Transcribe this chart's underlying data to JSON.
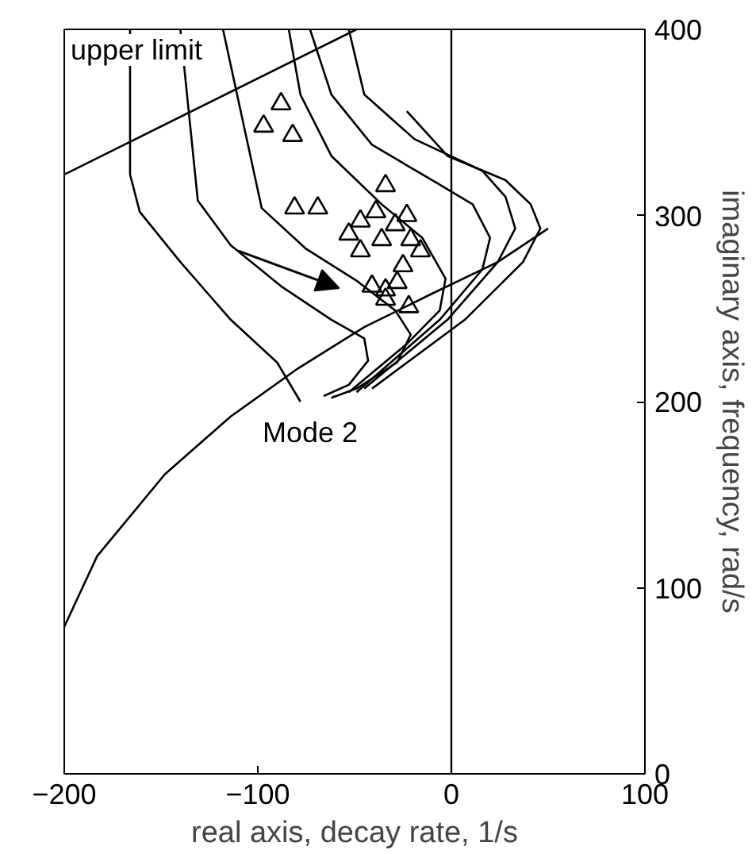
{
  "chart_data": {
    "type": "line",
    "xlabel": "real axis, decay rate, 1/s",
    "ylabel": "imaginary axis, frequency, rad/s",
    "xlim": [
      -200,
      100
    ],
    "ylim": [
      0,
      400
    ],
    "xticks": [
      -200,
      -100,
      0,
      100
    ],
    "yticks": [
      0,
      100,
      200,
      300,
      400
    ],
    "grid": false,
    "series": [
      {
        "color": "#000000",
        "x": [
          -166,
          -166,
          -161,
          -140,
          -114,
          -90,
          -78
        ],
        "values": [
          400,
          322,
          302,
          275,
          244,
          221,
          200
        ]
      },
      {
        "color": "#000000",
        "x": [
          -140,
          -131,
          -114,
          -88,
          -62,
          -45,
          -43,
          -53,
          -66
        ],
        "values": [
          400,
          308,
          284,
          262,
          244,
          234,
          222,
          209,
          203
        ]
      },
      {
        "color": "#000000",
        "x": [
          -118,
          -98,
          -75,
          -49,
          -29,
          -21,
          -28,
          -49,
          -62
        ],
        "values": [
          400,
          304,
          282,
          265,
          249,
          236,
          221,
          207,
          202
        ]
      },
      {
        "color": "#000000",
        "x": [
          -84,
          -78,
          -62,
          -36,
          -15,
          -3,
          -6,
          -23,
          -53
        ],
        "values": [
          400,
          365,
          332,
          306,
          288,
          266,
          249,
          231,
          205
        ]
      },
      {
        "color": "#000000",
        "x": [
          -73,
          -62,
          -41,
          -10,
          11,
          20,
          16,
          -6,
          -49
        ],
        "values": [
          400,
          365,
          338,
          319,
          306,
          288,
          271,
          244,
          205
        ]
      },
      {
        "color": "#000000",
        "x": [
          -53,
          -45,
          -19,
          16,
          28,
          33,
          24,
          -2,
          -45
        ],
        "values": [
          400,
          365,
          341,
          324,
          310,
          293,
          275,
          244,
          207
        ]
      },
      {
        "color": "#000000",
        "x": [
          -23,
          -2,
          28,
          41,
          46,
          37,
          7,
          -41
        ],
        "values": [
          356,
          332,
          319,
          306,
          293,
          275,
          244,
          207
        ]
      },
      {
        "color": "#000000",
        "x": [
          -200,
          -49
        ],
        "values": [
          322,
          400
        ]
      },
      {
        "color": "#000000",
        "x": [
          -200,
          -183,
          -148,
          -114,
          -79,
          -45,
          -10,
          24,
          50
        ],
        "values": [
          79,
          117,
          161,
          192,
          218,
          240,
          258,
          275,
          293
        ]
      },
      {
        "type": "scatter",
        "marker": "triangle",
        "color": "#000000",
        "x": [
          -88,
          -97,
          -82,
          -81,
          -69,
          -34,
          -39,
          -47,
          -23,
          -29,
          -53,
          -36,
          -21,
          -47,
          -16,
          -25,
          -41,
          -34,
          -28,
          -34,
          -22
        ],
        "values": [
          360,
          348,
          343,
          304,
          304,
          316,
          302,
          297,
          300,
          295,
          290,
          287,
          287,
          281,
          281,
          273,
          262,
          260,
          264,
          255,
          251
        ]
      }
    ],
    "ref_lines": [
      {
        "axis": "x",
        "value": 0,
        "color": "#000000"
      }
    ],
    "annotations": [
      "upper limit",
      "Mode 2"
    ]
  }
}
